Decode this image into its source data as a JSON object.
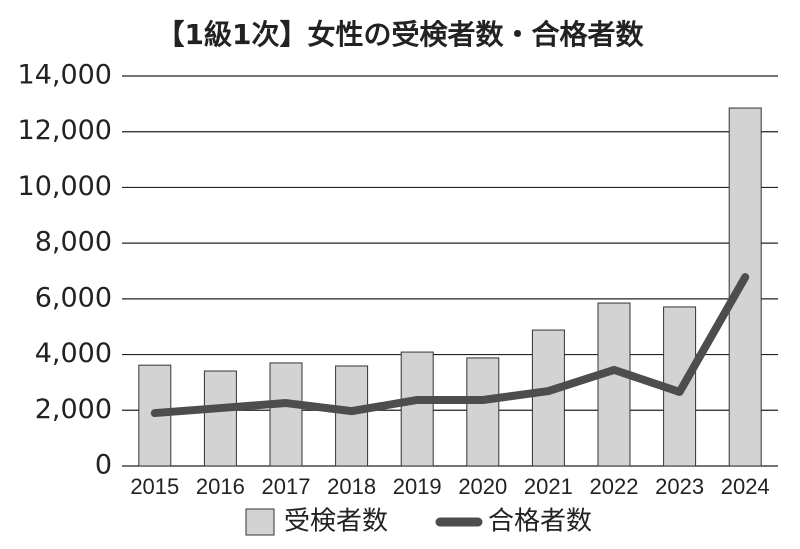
{
  "chart_data": {
    "type": "bar",
    "title": "【1級1次】女性の受検者数・合格者数",
    "categories": [
      "2015",
      "2016",
      "2017",
      "2018",
      "2019",
      "2020",
      "2021",
      "2022",
      "2023",
      "2024"
    ],
    "series": [
      {
        "name": "受検者数",
        "type": "bar",
        "color": "#d3d3d3",
        "values": [
          3620,
          3410,
          3700,
          3590,
          4090,
          3880,
          4880,
          5850,
          5710,
          12850
        ]
      },
      {
        "name": "合格者数",
        "type": "line",
        "color": "#4d4d4d",
        "values": [
          1900,
          2080,
          2260,
          1970,
          2370,
          2370,
          2690,
          3450,
          2660,
          6780
        ]
      }
    ],
    "ylim": [
      0,
      14000
    ],
    "yticks": [
      0,
      {
        "value": 2000,
        "label": "2,000"
      },
      {
        "value": 4000,
        "label": "4,000"
      },
      {
        "value": 6000,
        "label": "6,000"
      },
      {
        "value": 8000,
        "label": "8,000"
      },
      {
        "value": 10000,
        "label": "10,000"
      },
      {
        "value": 12000,
        "label": "12,000"
      },
      {
        "value": 14000,
        "label": "14,000"
      }
    ],
    "grid": true
  }
}
